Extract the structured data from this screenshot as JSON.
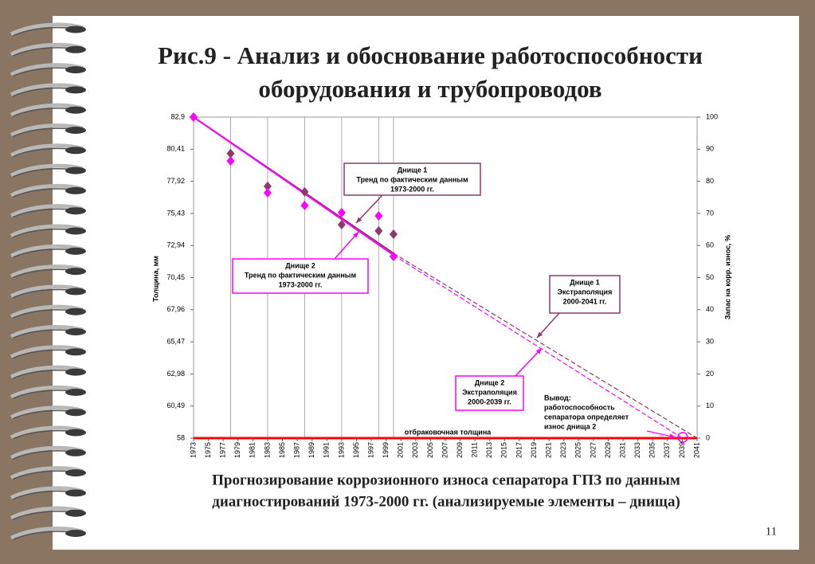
{
  "slide": {
    "title_lines": [
      "Рис.9 - Анализ и обоснование работоспособности",
      "оборудования и трубопроводов"
    ],
    "caption_lines": [
      "Прогнозирование коррозионного износа сепаратора ГПЗ по данным",
      "диагностирований 1973-2000 гг. (анализируемые элементы – днища)"
    ],
    "page_number": 11
  },
  "chart_data": {
    "type": "scatter",
    "y_label": "Толщина, мм",
    "y2_label": "Запас на корр. износ, %",
    "xlim": [
      1973,
      2041
    ],
    "xticks": [
      1973,
      1975,
      1977,
      1979,
      1981,
      1983,
      1985,
      1987,
      1989,
      1991,
      1993,
      1995,
      1997,
      1999,
      2001,
      2003,
      2005,
      2007,
      2009,
      2011,
      2013,
      2015,
      2017,
      2019,
      2021,
      2023,
      2025,
      2027,
      2029,
      2031,
      2033,
      2035,
      2037,
      2039,
      2041
    ],
    "ylim": [
      58,
      82.9
    ],
    "yticks": [
      58,
      {
        "value": 60.49,
        "label": "60,49"
      },
      {
        "value": 62.98,
        "label": "62,98"
      },
      {
        "value": 65.47,
        "label": "65,47"
      },
      {
        "value": 67.96,
        "label": "67,96"
      },
      {
        "value": 70.45,
        "label": "70,45"
      },
      {
        "value": 72.94,
        "label": "72,94"
      },
      {
        "value": 75.43,
        "label": "75,43"
      },
      {
        "value": 77.92,
        "label": "77,92"
      },
      {
        "value": 80.41,
        "label": "80,41"
      },
      {
        "value": 82.9,
        "label": "82,9"
      }
    ],
    "y2lim": [
      0,
      100
    ],
    "y2ticks": [
      0,
      10,
      20,
      30,
      40,
      50,
      60,
      70,
      80,
      90,
      100
    ],
    "series": [
      {
        "color": "#8b3a6b",
        "marker": "diamond",
        "x": [
          1973,
          1978,
          1983,
          1988,
          1993,
          1998,
          2000
        ],
        "values": [
          82.9,
          80.07,
          77.53,
          77.1,
          74.56,
          74.07,
          73.82
        ]
      },
      {
        "color": "#ff00ff",
        "marker": "diamond",
        "x": [
          1973,
          1978,
          1983,
          1988,
          1993,
          1998,
          2000
        ],
        "values": [
          82.9,
          79.5,
          77.03,
          76.05,
          75.49,
          75.24,
          72.09
        ]
      },
      {
        "color": "#8b3a6b",
        "marker": "line",
        "x": [
          1973,
          2000
        ],
        "values": [
          82.9,
          72.34
        ]
      },
      {
        "color": "#ff00ff",
        "marker": "line",
        "x": [
          1973,
          2000
        ],
        "values": [
          82.9,
          72.2
        ]
      },
      {
        "color": "#8b3a6b",
        "marker": "dashed",
        "x": [
          2000,
          2041
        ],
        "values": [
          72.34,
          58
        ]
      },
      {
        "color": "#ff00ff",
        "marker": "dashed",
        "x": [
          2000,
          2039
        ],
        "values": [
          72.2,
          58
        ]
      }
    ],
    "threshold": {
      "value": 58,
      "label": "отбраковочная толщина",
      "color": "#ff0000"
    },
    "annotations": [
      {
        "lines": [
          "Днище 1",
          "Тренд по фактическим данным",
          "1973-2000 гг."
        ],
        "color": "#8b3a6b"
      },
      {
        "lines": [
          "Днище 2",
          "Тренд по фактическим данным",
          "1973-2000 гг."
        ],
        "color": "#ff00ff"
      },
      {
        "lines": [
          "Днище 1",
          "Экстраполяция",
          "2000-2041 гг."
        ],
        "color": "#8b3a6b"
      },
      {
        "lines": [
          "Днище 2",
          "Экстраполяция",
          "2000-2039 гг."
        ],
        "color": "#ff00ff"
      }
    ],
    "conclusion": {
      "lines": [
        "Вывод:",
        "работоспособность",
        "сепаратора определяет",
        "износ днища 2"
      ],
      "color": "#ff00ff"
    }
  }
}
